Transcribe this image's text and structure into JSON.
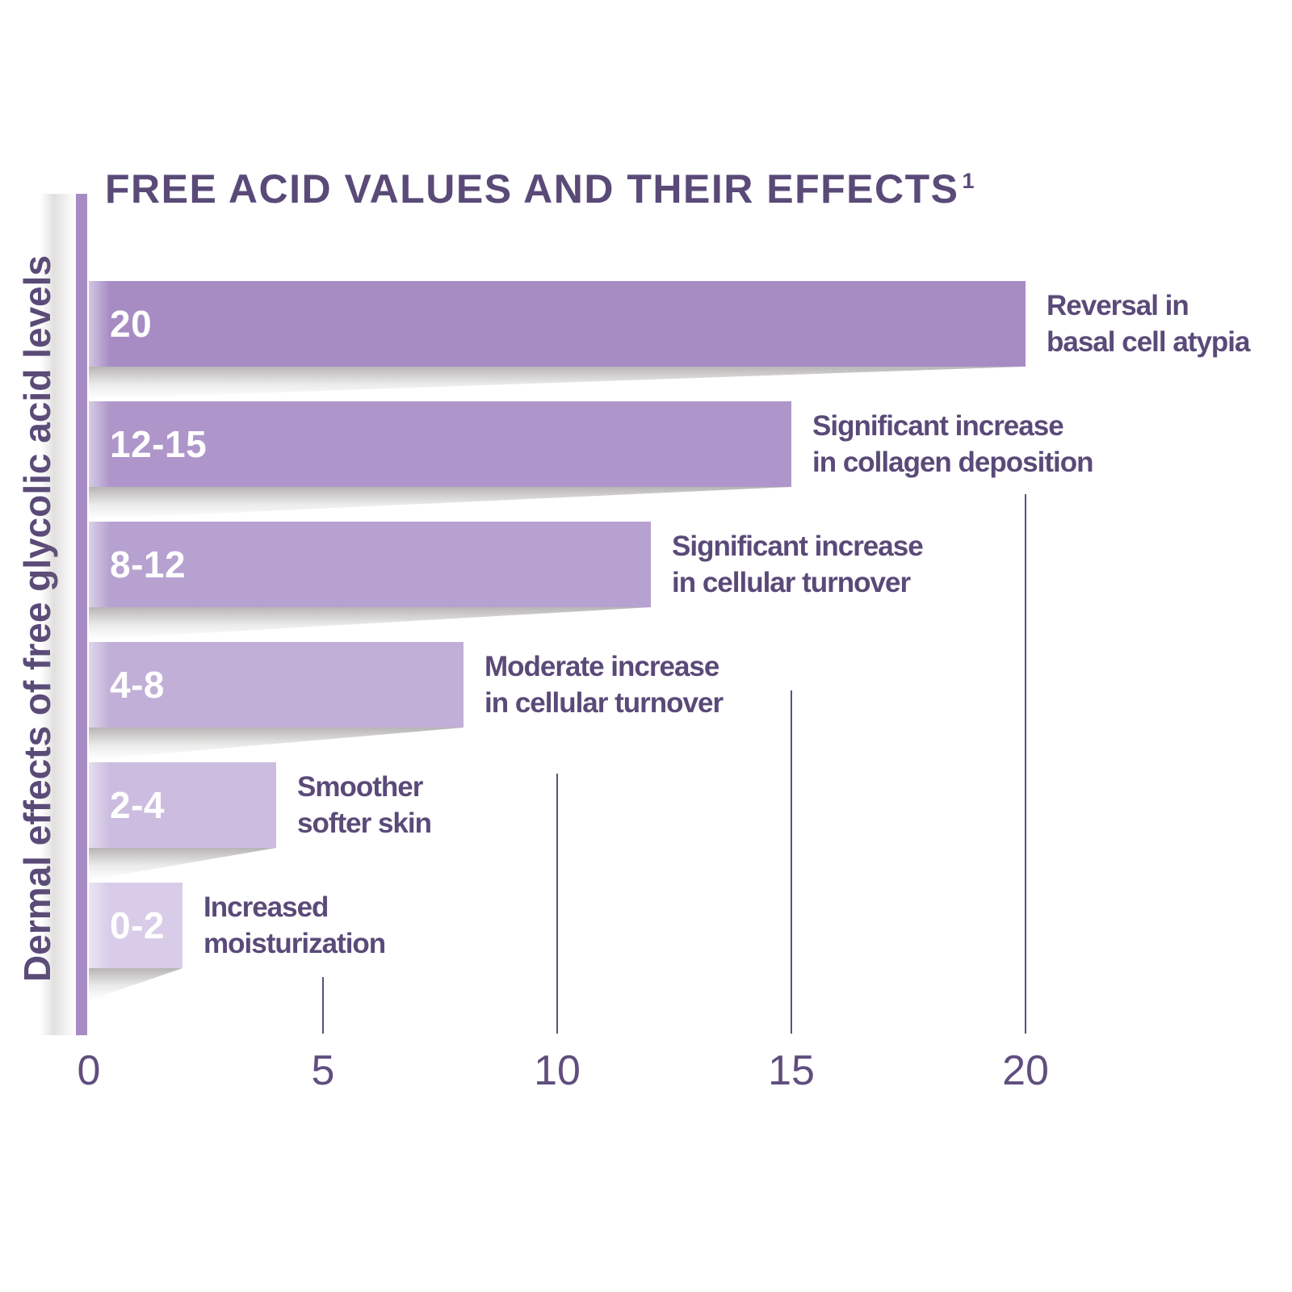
{
  "title": {
    "text": "FREE ACID VALUES AND THEIR EFFECTS",
    "superscript": "1"
  },
  "colors": {
    "heading_text": "#5a4a78",
    "tick_text": "#5f4e7e",
    "gridline": "#5f4e7e",
    "axis_spine": "#a78cc4",
    "bar_label_text": "#ffffff"
  },
  "chart_data": {
    "type": "bar",
    "orientation": "horizontal",
    "title": "FREE ACID VALUES AND THEIR EFFECTS",
    "title_superscript": "1",
    "xlabel": "",
    "ylabel": "Dermal effects of free glycolic acid levels",
    "xlim": [
      0,
      20
    ],
    "x_ticks": [
      "0",
      "5",
      "10",
      "15",
      "20"
    ],
    "x_tick_values": [
      0,
      5,
      10,
      15,
      20
    ],
    "grid": "partial vertical tick lines, no baseline",
    "legend": false,
    "categories": [
      "20",
      "12-15",
      "8-12",
      "4-8",
      "2-4",
      "0-2"
    ],
    "values": [
      20,
      15,
      12,
      8,
      4,
      2
    ],
    "bars": [
      {
        "label": "20",
        "value": 20,
        "annotation_lines": [
          "Reversal in",
          "basal cell atypia"
        ],
        "color": "#a78cc4"
      },
      {
        "label": "12-15",
        "value": 15,
        "annotation_lines": [
          "Significant increase",
          "in collagen deposition"
        ],
        "color": "#ae96ca"
      },
      {
        "label": "8-12",
        "value": 12,
        "annotation_lines": [
          "Significant increase",
          "in cellular turnover"
        ],
        "color": "#b6a1d0"
      },
      {
        "label": "4-8",
        "value": 8,
        "annotation_lines": [
          "Moderate increase",
          "in cellular turnover"
        ],
        "color": "#c1afd8"
      },
      {
        "label": "2-4",
        "value": 4,
        "annotation_lines": [
          "Smoother",
          "softer skin"
        ],
        "color": "#ccbde0"
      },
      {
        "label": "0-2",
        "value": 2,
        "annotation_lines": [
          "Increased",
          "moisturization"
        ],
        "color": "#d8cce8"
      }
    ]
  }
}
